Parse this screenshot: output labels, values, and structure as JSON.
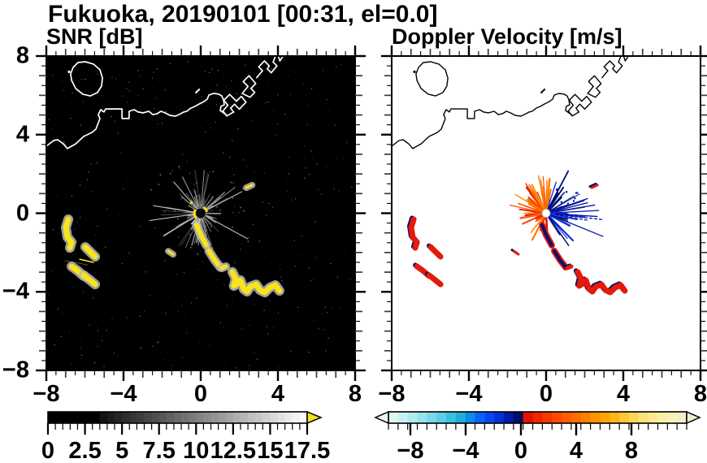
{
  "figure": {
    "title": "Fukuoka, 20190101 [00:31, el=0.0]"
  },
  "panels": [
    {
      "id": "snr",
      "title": "SNR [dB]",
      "bg": "#000000",
      "coast_color": "#ffffff",
      "x_tick_labels": [
        "−8",
        "−4",
        "0",
        "4",
        "8"
      ],
      "y_tick_labels": [
        "8",
        "4",
        "0",
        "−4",
        "−8"
      ],
      "colorbar": {
        "labels": [
          "0",
          "2.5",
          "5",
          "7.5",
          "10",
          "12.5",
          "15",
          "17.5"
        ],
        "label_values": [
          0,
          2.5,
          5,
          7.5,
          10,
          12.5,
          15,
          17.5
        ],
        "range": [
          0,
          17.5
        ],
        "overflow_color": "#f5e21c",
        "black_until": 4
      }
    },
    {
      "id": "doppler",
      "title": "Doppler Velocity [m/s]",
      "bg": "#ffffff",
      "coast_color": "#000000",
      "x_tick_labels": [
        "−8",
        "−4",
        "0",
        "4",
        "8"
      ],
      "y_tick_labels": [],
      "colorbar": {
        "labels": [
          "−8",
          "−4",
          "0",
          "4",
          "8"
        ],
        "label_values": [
          -8,
          -4,
          0,
          4,
          8
        ],
        "range": [
          -9.6,
          12
        ],
        "colors": [
          "#def8f4",
          "#c8f3f0",
          "#b0ecee",
          "#96e3ec",
          "#79d9e9",
          "#5bcde5",
          "#3bbfe0",
          "#21addb",
          "#0d8be6",
          "#0a63f5",
          "#0747f2",
          "#0430d8",
          "#021ca6",
          "#000e62",
          "#e91000",
          "#f12600",
          "#f73900",
          "#fc4b00",
          "#ff5d00",
          "#ff6f00",
          "#ff8100",
          "#ff9300",
          "#ffa500",
          "#ffb614",
          "#ffc636",
          "#ffd458",
          "#ffe078",
          "#fee992",
          "#fbeea8",
          "#f7f0ba",
          "#f2eec7"
        ],
        "arrow_left_color": "#e6fbf7",
        "arrow_right_color": "#f0edd2"
      }
    }
  ],
  "axes": {
    "xlim": [
      -8,
      8
    ],
    "ylim": [
      -8,
      8
    ],
    "x_tick_values": [
      -8,
      -4,
      0,
      4,
      8
    ],
    "y_tick_values": [
      8,
      4,
      0,
      -4,
      -8
    ],
    "minor_step": 0.5,
    "medium_step": 1,
    "major_step": 4
  },
  "map": {
    "coast_mainland": [
      [
        -8,
        3.41
      ],
      [
        -7.62,
        3.7
      ],
      [
        -7.41,
        3.74
      ],
      [
        -7.12,
        3.53
      ],
      [
        -6.91,
        3.29
      ],
      [
        -6.48,
        3.53
      ],
      [
        -6.06,
        3.91
      ],
      [
        -5.64,
        4.11
      ],
      [
        -5.43,
        4.28
      ],
      [
        -5.22,
        4.82
      ],
      [
        -5.31,
        5.02
      ],
      [
        -5.18,
        5.27
      ],
      [
        -5.01,
        5.15
      ],
      [
        -4.93,
        5.31
      ],
      [
        -4.51,
        5.31
      ],
      [
        -4.08,
        5.31
      ],
      [
        -4.08,
        4.82
      ],
      [
        -3.71,
        4.82
      ],
      [
        -3.71,
        5.19
      ],
      [
        -3.45,
        5.27
      ],
      [
        -3.24,
        5.15
      ],
      [
        -2.99,
        5.11
      ],
      [
        -2.69,
        5.19
      ],
      [
        -2.48,
        5.02
      ],
      [
        -2.27,
        5.06
      ],
      [
        -2.06,
        5.19
      ],
      [
        -1.85,
        5.11
      ],
      [
        -1.6,
        4.98
      ],
      [
        -1.31,
        4.94
      ],
      [
        -1.05,
        5.06
      ],
      [
        -0.88,
        5.15
      ],
      [
        -0.72,
        5.19
      ],
      [
        -0.51,
        5.35
      ],
      [
        -0.29,
        5.44
      ],
      [
        -0.08,
        5.56
      ],
      [
        0.17,
        5.68
      ],
      [
        0.34,
        5.81
      ],
      [
        0.42,
        6.01
      ],
      [
        0.67,
        6.1
      ],
      [
        0.93,
        6.06
      ],
      [
        1.09,
        5.97
      ],
      [
        1.18,
        5.77
      ],
      [
        1.22,
        5.52
      ],
      [
        1.05,
        5.44
      ],
      [
        1.01,
        5.23
      ],
      [
        1.18,
        5.11
      ],
      [
        1.35,
        4.98
      ]
    ],
    "island": [
      [
        -6.36,
        7.67
      ],
      [
        -6.61,
        7.42
      ],
      [
        -6.74,
        7.09
      ],
      [
        -6.69,
        6.76
      ],
      [
        -6.48,
        6.35
      ],
      [
        -6.11,
        6.06
      ],
      [
        -5.73,
        5.97
      ],
      [
        -5.35,
        6.14
      ],
      [
        -5.14,
        6.47
      ],
      [
        -5.09,
        6.88
      ],
      [
        -5.22,
        7.3
      ],
      [
        -5.56,
        7.59
      ],
      [
        -5.98,
        7.71
      ]
    ],
    "islet_dot": [
      -6.82,
      7.2
    ],
    "small_islet_dash": [
      [
        -0.25,
        6.14
      ],
      [
        -0.08,
        6.3
      ]
    ],
    "pier_a": [
      [
        1.35,
        4.95
      ],
      [
        1.15,
        5.2
      ],
      [
        1.4,
        5.5
      ],
      [
        1.2,
        5.75
      ],
      [
        1.5,
        6.05
      ],
      [
        1.85,
        5.7
      ],
      [
        2.1,
        5.95
      ],
      [
        2.35,
        5.65
      ],
      [
        2.0,
        5.3
      ],
      [
        1.75,
        5.55
      ],
      [
        1.55,
        5.35
      ],
      [
        1.7,
        5.15
      ]
    ],
    "pier_b": [
      [
        2.15,
        6.1
      ],
      [
        2.45,
        6.45
      ],
      [
        2.2,
        6.7
      ],
      [
        2.5,
        7.0
      ],
      [
        2.85,
        6.6
      ],
      [
        2.6,
        6.35
      ],
      [
        2.8,
        6.15
      ],
      [
        2.55,
        5.9
      ]
    ],
    "pier_c": [
      [
        2.9,
        6.9
      ],
      [
        3.2,
        7.25
      ],
      [
        3.0,
        7.45
      ],
      [
        3.3,
        7.75
      ],
      [
        3.55,
        7.5
      ],
      [
        3.45,
        7.35
      ],
      [
        3.65,
        7.15
      ],
      [
        3.95,
        7.5
      ],
      [
        3.75,
        7.7
      ],
      [
        3.9,
        8.05
      ]
    ],
    "pier_notch": [
      [
        4.0,
        8.05
      ],
      [
        4.1,
        7.75
      ],
      [
        4.3,
        8.05
      ]
    ],
    "faint_line": [
      [
        -7.03,
        -2.42
      ],
      [
        -5.85,
        -2.63
      ]
    ],
    "echo_tracks": [
      {
        "name": "west-track-1",
        "pts": [
          [
            -6.86,
            -0.31
          ],
          [
            -6.99,
            -0.72
          ],
          [
            -6.91,
            -1.22
          ],
          [
            -6.69,
            -1.47
          ],
          [
            -6.78,
            -1.76
          ]
        ],
        "w": 7,
        "dop": "red"
      },
      {
        "name": "west-track-2",
        "pts": [
          [
            -5.98,
            -1.72
          ],
          [
            -5.64,
            -2.05
          ],
          [
            -5.47,
            -2.21
          ]
        ],
        "w": 7,
        "dop": "red"
      },
      {
        "name": "west-streak",
        "pts": [
          [
            -6.27,
            -2.34
          ],
          [
            -5.56,
            -2.5
          ]
        ],
        "w": 1.5,
        "dop": "none"
      },
      {
        "name": "west-track-3",
        "pts": [
          [
            -6.69,
            -2.71
          ],
          [
            -6.4,
            -2.91
          ],
          [
            -6.06,
            -3.2
          ]
        ],
        "w": 7,
        "dop": "red"
      },
      {
        "name": "west-track-4",
        "pts": [
          [
            -6.06,
            -3.16
          ],
          [
            -5.73,
            -3.41
          ],
          [
            -5.47,
            -3.62
          ]
        ],
        "w": 7,
        "dop": "red"
      },
      {
        "name": "center-track-a",
        "pts": [
          [
            -0.21,
            -0.6
          ],
          [
            0.0,
            -1.1
          ],
          [
            0.29,
            -1.63
          ]
        ],
        "w": 6,
        "dop": "navy"
      },
      {
        "name": "center-track-b",
        "pts": [
          [
            0.42,
            -1.92
          ],
          [
            0.72,
            -2.38
          ],
          [
            1.01,
            -2.75
          ]
        ],
        "w": 6,
        "dop": "navy"
      },
      {
        "name": "center-track-c",
        "pts": [
          [
            1.1,
            -2.79
          ],
          [
            1.31,
            -2.71
          ]
        ],
        "w": 5,
        "dop": "red"
      },
      {
        "name": "se-cluster",
        "pts": [
          [
            1.64,
            -2.99
          ],
          [
            1.81,
            -3.33
          ],
          [
            1.72,
            -3.7
          ],
          [
            1.95,
            -3.55
          ],
          [
            2.06,
            -3.41
          ],
          [
            2.23,
            -3.87
          ],
          [
            2.4,
            -3.99
          ],
          [
            2.57,
            -3.74
          ],
          [
            2.87,
            -3.62
          ],
          [
            3.07,
            -3.91
          ],
          [
            3.32,
            -4.03
          ],
          [
            3.57,
            -3.79
          ],
          [
            3.87,
            -3.66
          ],
          [
            4.08,
            -3.95
          ]
        ],
        "w": 7,
        "dop": "red"
      },
      {
        "name": "ne-dash",
        "pts": [
          [
            2.36,
            1.3
          ],
          [
            2.66,
            1.43
          ]
        ],
        "w": 3,
        "dop": "red"
      },
      {
        "name": "w-dash",
        "pts": [
          [
            -1.68,
            -1.93
          ],
          [
            -1.43,
            -2.09
          ]
        ],
        "w": 3,
        "dop": "red"
      }
    ],
    "radar_origin": [
      0,
      0
    ]
  },
  "chart_data": {
    "type": "heatmap",
    "title": "Fukuoka, 20190101 [00:31, el=0.0]",
    "panels": [
      {
        "title": "SNR [dB]",
        "xlim": [
          -8,
          8
        ],
        "ylim": [
          -8,
          8
        ],
        "xticks": [
          -8,
          -4,
          0,
          4,
          8
        ],
        "yticks": [
          8,
          4,
          0,
          -4,
          -8
        ],
        "colorbar_ticks": [
          0,
          2.5,
          5,
          7.5,
          10,
          12.5,
          15,
          17.5
        ],
        "colorbar_range": [
          0,
          17.5
        ],
        "colorbar_scheme": "black to white grayscale with yellow overflow arrow",
        "depicts": "PPI radar SNR field: black low-SNR background with speckle, gray ray starburst at radar origin (0,0), white Hakata Bay coastline with island near (-6,7) and port piers near (2,6), bright yellow high-SNR ship echo tracks southwest of radar near (-6,-2) and along a line from origin to (4,-4)"
      },
      {
        "title": "Doppler Velocity [m/s]",
        "xlim": [
          -8,
          8
        ],
        "ylim": [
          -8,
          8
        ],
        "xticks": [
          -8,
          -4,
          0,
          4,
          8
        ],
        "colorbar_ticks": [
          -8,
          -4,
          0,
          4,
          8
        ],
        "colorbar_range": [
          -9.6,
          12
        ],
        "colorbar_scheme": "pale cyan to blue to navy for negative velocities, red to orange to pale yellow for positive",
        "depicts": "Same scene on white: black coastline, velocity couplet at radar origin with orange/red spray to west-northwest and blue/navy spray to east, ship echo tracks rendered red with navy fringes at same locations as SNR panel"
      }
    ]
  }
}
